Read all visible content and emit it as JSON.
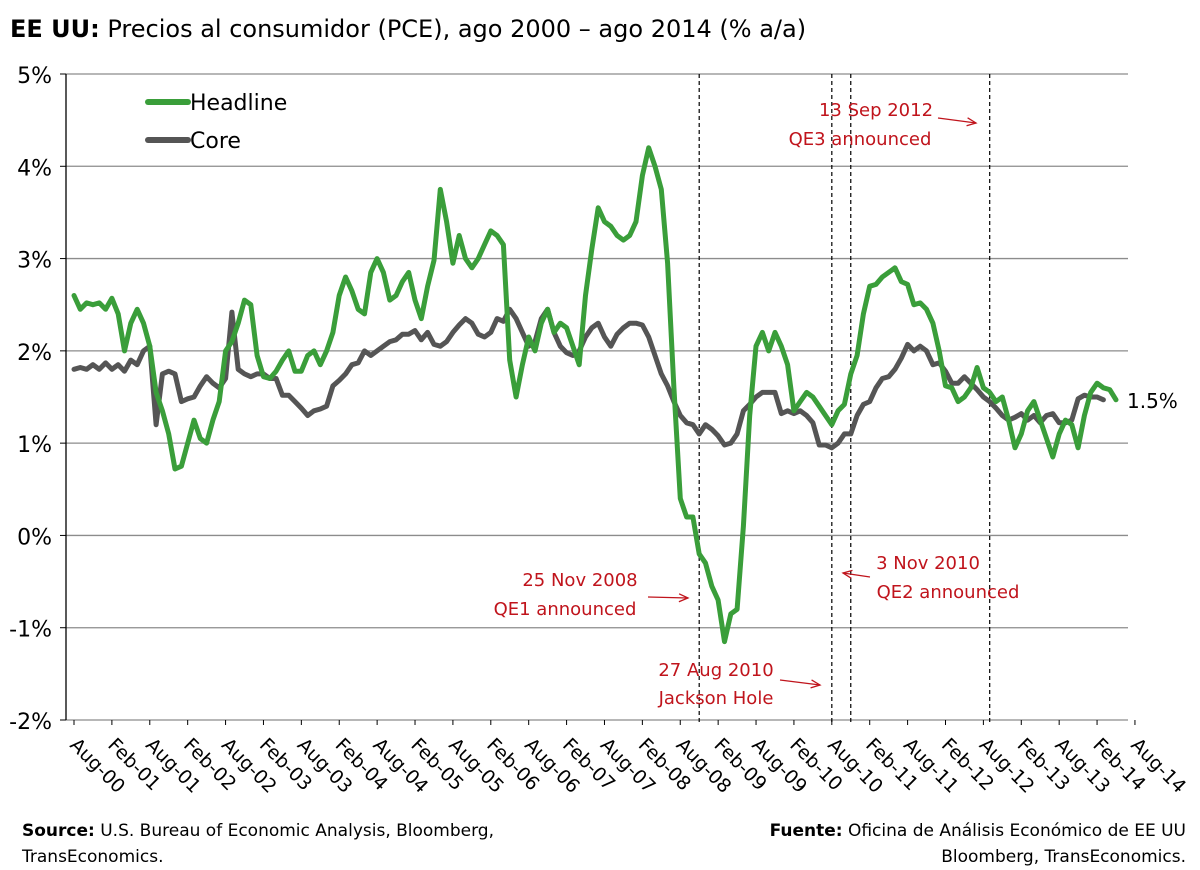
{
  "title": {
    "bold": "EE UU:",
    "rest": "Precios al consumidor (PCE), ago 2000 – ago 2014 (% a/a)"
  },
  "source_left": {
    "label": "Source:",
    "line1": "U.S. Bureau of Economic Analysis, Bloomberg,",
    "line2": "TransEconomics."
  },
  "source_right": {
    "label": "Fuente:",
    "line1": "Oficina de Análisis Económico de EE UU",
    "line2": "Bloomberg, TransEconomics."
  },
  "colors": {
    "headline": "#3a9e3a",
    "core": "#555555",
    "annotation": "#c0141c",
    "grid": "#8c8c8c"
  },
  "chart_data": {
    "type": "line",
    "ylim": [
      -2,
      5
    ],
    "yticks": [
      -2,
      -1,
      0,
      1,
      2,
      3,
      4,
      5
    ],
    "ytick_labels": [
      "-2%",
      "-1%",
      "0%",
      "1%",
      "2%",
      "3%",
      "4%",
      "5%"
    ],
    "xticks": [
      "Aug-00",
      "Feb-01",
      "Aug-01",
      "Feb-02",
      "Aug-02",
      "Feb-03",
      "Aug-03",
      "Feb-04",
      "Aug-04",
      "Feb-05",
      "Aug-05",
      "Feb-06",
      "Aug-06",
      "Feb-07",
      "Aug-07",
      "Feb-08",
      "Aug-08",
      "Feb-09",
      "Aug-09",
      "Feb-10",
      "Aug-10",
      "Feb-11",
      "Aug-11",
      "Feb-12",
      "Aug-12",
      "Feb-13",
      "Aug-13",
      "Feb-14",
      "Aug-14"
    ],
    "grid": true,
    "legend_position": "top-left",
    "end_label": "1.5%",
    "series": [
      {
        "name": "Headline",
        "values": [
          2.6,
          2.45,
          2.52,
          2.5,
          2.52,
          2.45,
          2.57,
          2.4,
          2.0,
          2.3,
          2.45,
          2.3,
          2.05,
          1.55,
          1.35,
          1.1,
          0.72,
          0.75,
          1.0,
          1.25,
          1.05,
          1.0,
          1.25,
          1.45,
          2.0,
          2.1,
          2.3,
          2.55,
          2.5,
          1.95,
          1.72,
          1.7,
          1.78,
          1.9,
          2.0,
          1.78,
          1.78,
          1.95,
          2.0,
          1.85,
          2.0,
          2.2,
          2.6,
          2.8,
          2.65,
          2.45,
          2.4,
          2.85,
          3.0,
          2.85,
          2.55,
          2.6,
          2.75,
          2.85,
          2.55,
          2.35,
          2.7,
          2.98,
          3.75,
          3.4,
          2.95,
          3.25,
          3.0,
          2.9,
          3.0,
          3.15,
          3.3,
          3.25,
          3.15,
          1.9,
          1.5,
          1.85,
          2.15,
          2.0,
          2.3,
          2.45,
          2.2,
          2.3,
          2.25,
          2.05,
          1.85,
          2.6,
          3.1,
          3.55,
          3.4,
          3.35,
          3.25,
          3.2,
          3.25,
          3.4,
          3.9,
          4.2,
          4.0,
          3.75,
          2.95,
          1.6,
          0.4,
          0.2,
          0.2,
          -0.2,
          -0.3,
          -0.55,
          -0.7,
          -1.15,
          -0.85,
          -0.8,
          0.1,
          1.3,
          2.05,
          2.2,
          2.0,
          2.2,
          2.05,
          1.85,
          1.35,
          1.45,
          1.55,
          1.5,
          1.4,
          1.3,
          1.2,
          1.35,
          1.42,
          1.75,
          1.95,
          2.4,
          2.7,
          2.72,
          2.8,
          2.85,
          2.9,
          2.75,
          2.72,
          2.5,
          2.52,
          2.45,
          2.3,
          2.0,
          1.62,
          1.6,
          1.45,
          1.5,
          1.6,
          1.82,
          1.6,
          1.55,
          1.45,
          1.5,
          1.25,
          0.95,
          1.1,
          1.35,
          1.45,
          1.25,
          1.05,
          0.85,
          1.1,
          1.25,
          1.2,
          0.95,
          1.3,
          1.55,
          1.65,
          1.6,
          1.58,
          1.47
        ]
      },
      {
        "name": "Core",
        "values": [
          1.8,
          1.82,
          1.8,
          1.85,
          1.8,
          1.87,
          1.8,
          1.85,
          1.78,
          1.9,
          1.85,
          2.0,
          2.05,
          1.2,
          1.75,
          1.78,
          1.75,
          1.45,
          1.48,
          1.5,
          1.62,
          1.72,
          1.65,
          1.6,
          1.7,
          2.42,
          1.8,
          1.75,
          1.72,
          1.75,
          1.75,
          1.7,
          1.7,
          1.52,
          1.52,
          1.45,
          1.38,
          1.3,
          1.35,
          1.37,
          1.4,
          1.62,
          1.68,
          1.75,
          1.85,
          1.87,
          2.0,
          1.95,
          2.0,
          2.05,
          2.1,
          2.12,
          2.18,
          2.18,
          2.22,
          2.12,
          2.2,
          2.07,
          2.05,
          2.1,
          2.2,
          2.28,
          2.35,
          2.3,
          2.18,
          2.15,
          2.2,
          2.35,
          2.32,
          2.45,
          2.35,
          2.2,
          2.05,
          2.1,
          2.35,
          2.45,
          2.2,
          2.05,
          1.98,
          1.95,
          2.0,
          2.15,
          2.25,
          2.3,
          2.15,
          2.05,
          2.18,
          2.25,
          2.3,
          2.3,
          2.28,
          2.15,
          1.95,
          1.75,
          1.62,
          1.45,
          1.3,
          1.22,
          1.2,
          1.1,
          1.2,
          1.15,
          1.08,
          0.98,
          1.0,
          1.1,
          1.35,
          1.42,
          1.5,
          1.55,
          1.55,
          1.55,
          1.32,
          1.35,
          1.32,
          1.35,
          1.3,
          1.22,
          0.98,
          0.98,
          0.95,
          1.0,
          1.1,
          1.1,
          1.3,
          1.42,
          1.45,
          1.6,
          1.7,
          1.72,
          1.8,
          1.92,
          2.07,
          2.0,
          2.05,
          2.0,
          1.85,
          1.87,
          1.78,
          1.65,
          1.65,
          1.72,
          1.65,
          1.58,
          1.5,
          1.45,
          1.38,
          1.3,
          1.25,
          1.28,
          1.32,
          1.25,
          1.3,
          1.22,
          1.3,
          1.32,
          1.22,
          1.22,
          1.25,
          1.48,
          1.52,
          1.5,
          1.5,
          1.47
        ]
      }
    ],
    "events": [
      {
        "date_label": "25 Nov 2008",
        "event_label": "QE1 announced",
        "month_index": 99
      },
      {
        "date_label": "27 Aug 2010",
        "event_label": "Jackson Hole",
        "month_index": 120
      },
      {
        "date_label": "3 Nov 2010",
        "event_label": "QE2 announced",
        "month_index": 123
      },
      {
        "date_label": "13 Sep 2012",
        "event_label": "QE3 announced",
        "month_index": 145
      }
    ]
  }
}
